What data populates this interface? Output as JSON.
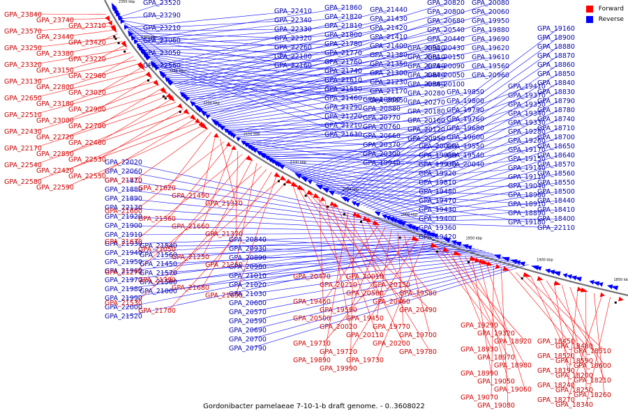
{
  "caption": "Gordonibacter pamelaeae 7-10-1-b draft genome. - 0..3608022",
  "legend": [
    {
      "label": "Forward",
      "color": "#ff0000"
    },
    {
      "label": "Reverse",
      "color": "#0000ff"
    }
  ],
  "axis": {
    "scale_labels": [
      "2350 kbp",
      "2300 kbp",
      "2250 kbp",
      "2200 kbp",
      "2150 kbp",
      "2100 kbp",
      "2050 kbp",
      "2000 kbp",
      "1950 kbp",
      "1900 kbp",
      "1850 kbp"
    ]
  },
  "reverse_labels": [
    "GPA_23520",
    "GPA_23290",
    "GPA_23210",
    "GPA_23060",
    "GPA_23050",
    "GPA_22560",
    "GPA_22410",
    "GPA_22340",
    "GPA_22330",
    "GPA_22320",
    "GPA_22260",
    "GPA_22180",
    "GPA_22160",
    "GPA_21860",
    "GPA_21820",
    "GPA_21810",
    "GPA_21800",
    "GPA_21780",
    "GPA_21770",
    "GPA_21760",
    "GPA_21740",
    "GPA_21610",
    "GPA_21550",
    "GPA_21460",
    "GPA_21290",
    "GPA_21220",
    "GPA_21210",
    "GPA_21630",
    "GPA_21440",
    "GPA_21430",
    "GPA_21420",
    "GPA_21410",
    "GPA_21400",
    "GPA_21380",
    "GPA_21350",
    "GPA_21300",
    "GPA_21230",
    "GPA_21170",
    "GPA_20850",
    "GPA_20820",
    "GPA_20800",
    "GPA_20680",
    "GPA_20540",
    "GPA_20440",
    "GPA_20430",
    "GPA_20150",
    "GPA_20090",
    "GPA_20050",
    "GPA_20100",
    "GPA_20080",
    "GPA_20060",
    "GPA_19950",
    "GPA_19880",
    "GPA_19690",
    "GPA_19620",
    "GPA_19610",
    "GPA_19560",
    "GPA_20960",
    "GPA_20920",
    "GPA_20810",
    "GPA_20780",
    "GPA_20670",
    "GPA_20380",
    "GPA_20280",
    "GPA_20270",
    "GPA_20180",
    "GPA_20160",
    "GPA_20120",
    "GPA_20950",
    "GPA_20900",
    "GPA_20880",
    "GPA_20770",
    "GPA_20760",
    "GPA_20660",
    "GPA_20370",
    "GPA_20300",
    "GPA_19940",
    "GPA_19850",
    "GPA_19800",
    "GPA_19790",
    "GPA_19760",
    "GPA_19680",
    "GPA_19600",
    "GPA_19550",
    "GPA_19540",
    "GPA_20040",
    "GPA_20000",
    "GPA_19980",
    "GPA_19930",
    "GPA_19920",
    "GPA_19810",
    "GPA_19480",
    "GPA_19470",
    "GPA_19430",
    "GPA_19400",
    "GPA_19360",
    "GPA_19420",
    "GPA_19410",
    "GPA_19370",
    "GPA_19350",
    "GPA_19340",
    "GPA_19330",
    "GPA_19280",
    "GPA_19260",
    "GPA_19170",
    "GPA_19150",
    "GPA_19140",
    "GPA_19110",
    "GPA_19040",
    "GPA_18960",
    "GPA_18910",
    "GPA_18890",
    "GPA_19180",
    "GPA_19160",
    "GPA_18900",
    "GPA_18880",
    "GPA_18870",
    "GPA_18860",
    "GPA_18850",
    "GPA_18840",
    "GPA_18830",
    "GPA_18790",
    "GPA_18780",
    "GPA_18740",
    "GPA_18710",
    "GPA_18700",
    "GPA_18650",
    "GPA_18640",
    "GPA_18570",
    "GPA_18560",
    "GPA_18550",
    "GPA_18500",
    "GPA_18440",
    "GPA_18410",
    "GPA_18400",
    "GPA_22110",
    "GPA_22020",
    "GPA_22060",
    "GPA_21870",
    "GPA_21880",
    "GPA_21890",
    "GPA_22130",
    "GPA_21920",
    "GPA_21900",
    "GPA_21910",
    "GPA_21930",
    "GPA_21940",
    "GPA_21950",
    "GPA_21960",
    "GPA_21970",
    "GPA_21980",
    "GPA_21990",
    "GPA_22000",
    "GPA_21520",
    "GPA_21540",
    "GPA_21560",
    "GPA_21450",
    "GPA_21570",
    "GPA_21580",
    "GPA_21000",
    "GPA_20840",
    "GPA_20930",
    "GPA_20890",
    "GPA_20980",
    "GPA_21010",
    "GPA_21020",
    "GPA_21030",
    "GPA_20600",
    "GPA_20570",
    "GPA_20590",
    "GPA_20690",
    "GPA_20700",
    "GPA_20790"
  ],
  "forward_labels": [
    "GPA_23840",
    "GPA_23740",
    "GPA_23710",
    "GPA_23570",
    "GPA_23440",
    "GPA_23420",
    "GPA_23250",
    "GPA_23380",
    "GPA_23220",
    "GPA_23320",
    "GPA_23150",
    "GPA_22960",
    "GPA_23130",
    "GPA_22800",
    "GPA_23020",
    "GPA_22650",
    "GPA_23180",
    "GPA_22900",
    "GPA_22510",
    "GPA_23000",
    "GPA_22700",
    "GPA_22430",
    "GPA_22720",
    "GPA_22460",
    "GPA_22170",
    "GPA_22850",
    "GPA_22530",
    "GPA_22540",
    "GPA_22420",
    "GPA_22550",
    "GPA_22580",
    "GPA_22590",
    "GPA_21710",
    "GPA_21620",
    "GPA_21490",
    "GPA_21310",
    "GPA_21600",
    "GPA_21360",
    "GPA_21660",
    "GPA_21370",
    "GPA_21670",
    "GPA_21050",
    "GPA_21250",
    "GPA_21260",
    "GPA_21270",
    "GPA_21390",
    "GPA_21680",
    "GPA_21690",
    "GPA_21530",
    "GPA_21700",
    "GPA_20470",
    "GPA_20210",
    "GPA_20580",
    "GPA_20460",
    "GPA_20490",
    "GPA_20500",
    "GPA_20020",
    "GPA_20110",
    "GPA_20200",
    "GPA_19780",
    "GPA_19890",
    "GPA_19990",
    "GPA_20010",
    "GPA_20130",
    "GPA_19580",
    "GPA_19460",
    "GPA_19590",
    "GPA_19450",
    "GPA_19770",
    "GPA_19700",
    "GPA_19710",
    "GPA_19720",
    "GPA_19730",
    "GPA_19290",
    "GPA_19320",
    "GPA_18920",
    "GPA_18930",
    "GPA_18970",
    "GPA_18980",
    "GPA_18990",
    "GPA_19050",
    "GPA_19060",
    "GPA_19070",
    "GPA_19080",
    "GPA_18450",
    "GPA_18480",
    "GPA_18510",
    "GPA_18520",
    "GPA_18590",
    "GPA_18600",
    "GPA_18190",
    "GPA_18200",
    "GPA_18210",
    "GPA_18240",
    "GPA_18250",
    "GPA_18260",
    "GPA_18270",
    "GPA_18340"
  ]
}
